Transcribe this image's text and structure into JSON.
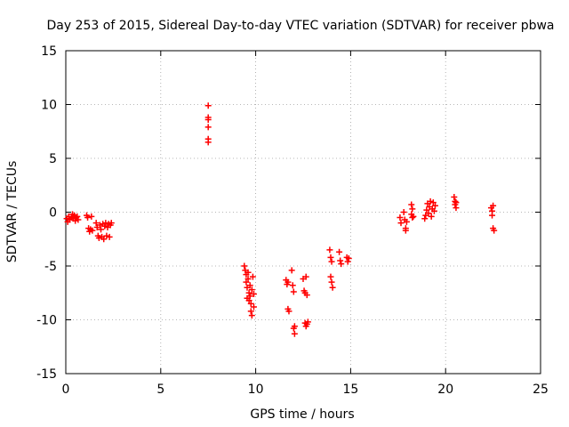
{
  "chart_data": {
    "type": "scatter",
    "title": "Day 253 of 2015, Sidereal Day-to-day VTEC variation (SDTVAR) for receiver pbwa",
    "xlabel": "GPS time / hours",
    "ylabel": "SDTVAR / TECUs",
    "xlim": [
      0,
      25
    ],
    "ylim": [
      -15,
      15
    ],
    "xticks": [
      0,
      5,
      10,
      15,
      20,
      25
    ],
    "yticks": [
      -15,
      -10,
      -5,
      0,
      5,
      10,
      15
    ],
    "grid": true,
    "marker": "+",
    "color": "#ff0000",
    "series": [
      {
        "name": "pbwa",
        "points": [
          [
            0.05,
            -0.6
          ],
          [
            0.1,
            -0.9
          ],
          [
            0.15,
            -0.4
          ],
          [
            0.2,
            -0.7
          ],
          [
            0.3,
            -0.5
          ],
          [
            0.35,
            -0.2
          ],
          [
            0.4,
            -0.6
          ],
          [
            0.45,
            -0.3
          ],
          [
            0.5,
            -0.8
          ],
          [
            0.55,
            -0.5
          ],
          [
            0.6,
            -0.4
          ],
          [
            0.65,
            -0.7
          ],
          [
            1.1,
            -0.3
          ],
          [
            1.15,
            -0.5
          ],
          [
            1.2,
            -1.5
          ],
          [
            1.25,
            -1.8
          ],
          [
            1.3,
            -1.6
          ],
          [
            1.35,
            -0.4
          ],
          [
            1.4,
            -1.7
          ],
          [
            1.6,
            -1.0
          ],
          [
            1.65,
            -1.4
          ],
          [
            1.7,
            -2.2
          ],
          [
            1.75,
            -2.4
          ],
          [
            1.8,
            -1.2
          ],
          [
            1.85,
            -1.6
          ],
          [
            1.9,
            -2.3
          ],
          [
            1.95,
            -1.1
          ],
          [
            2.0,
            -2.5
          ],
          [
            2.05,
            -1.3
          ],
          [
            2.1,
            -1.0
          ],
          [
            2.15,
            -2.2
          ],
          [
            2.2,
            -1.4
          ],
          [
            2.25,
            -1.1
          ],
          [
            2.3,
            -2.3
          ],
          [
            2.35,
            -1.2
          ],
          [
            2.4,
            -1.0
          ],
          [
            7.5,
            9.9
          ],
          [
            7.5,
            8.8
          ],
          [
            7.5,
            8.6
          ],
          [
            7.5,
            7.9
          ],
          [
            7.5,
            6.8
          ],
          [
            7.5,
            6.5
          ],
          [
            9.4,
            -5.0
          ],
          [
            9.45,
            -5.4
          ],
          [
            9.5,
            -5.8
          ],
          [
            9.5,
            -6.5
          ],
          [
            9.55,
            -7.0
          ],
          [
            9.55,
            -8.0
          ],
          [
            9.6,
            -5.6
          ],
          [
            9.6,
            -6.2
          ],
          [
            9.65,
            -7.5
          ],
          [
            9.65,
            -8.2
          ],
          [
            9.7,
            -6.8
          ],
          [
            9.7,
            -7.8
          ],
          [
            9.75,
            -8.5
          ],
          [
            9.75,
            -9.2
          ],
          [
            9.8,
            -9.6
          ],
          [
            9.8,
            -7.2
          ],
          [
            9.85,
            -6.0
          ],
          [
            9.9,
            -7.6
          ],
          [
            9.9,
            -8.8
          ],
          [
            11.6,
            -6.3
          ],
          [
            11.65,
            -6.7
          ],
          [
            11.7,
            -9.0
          ],
          [
            11.75,
            -9.2
          ],
          [
            11.7,
            -6.5
          ],
          [
            11.9,
            -5.4
          ],
          [
            11.95,
            -6.8
          ],
          [
            12.0,
            -7.4
          ],
          [
            12.0,
            -10.8
          ],
          [
            12.05,
            -11.3
          ],
          [
            12.05,
            -10.6
          ],
          [
            12.5,
            -6.2
          ],
          [
            12.55,
            -7.3
          ],
          [
            12.6,
            -7.5
          ],
          [
            12.65,
            -6.0
          ],
          [
            12.7,
            -7.7
          ],
          [
            12.6,
            -10.3
          ],
          [
            12.65,
            -10.6
          ],
          [
            12.7,
            -10.4
          ],
          [
            12.75,
            -10.2
          ],
          [
            13.9,
            -3.5
          ],
          [
            13.95,
            -4.2
          ],
          [
            14.0,
            -4.6
          ],
          [
            13.95,
            -6.0
          ],
          [
            14.0,
            -6.5
          ],
          [
            14.05,
            -7.0
          ],
          [
            14.4,
            -3.7
          ],
          [
            14.45,
            -4.5
          ],
          [
            14.5,
            -4.8
          ],
          [
            14.8,
            -4.2
          ],
          [
            14.85,
            -4.6
          ],
          [
            14.9,
            -4.3
          ],
          [
            17.6,
            -0.5
          ],
          [
            17.65,
            -1.0
          ],
          [
            17.8,
            0.0
          ],
          [
            17.85,
            -0.7
          ],
          [
            17.9,
            -1.5
          ],
          [
            17.9,
            -1.7
          ],
          [
            17.95,
            -0.9
          ],
          [
            18.2,
            0.7
          ],
          [
            18.25,
            0.3
          ],
          [
            18.2,
            -0.2
          ],
          [
            18.25,
            -0.5
          ],
          [
            18.3,
            -0.4
          ],
          [
            18.9,
            -0.6
          ],
          [
            18.95,
            -0.3
          ],
          [
            19.0,
            0.2
          ],
          [
            19.05,
            0.8
          ],
          [
            19.1,
            -0.1
          ],
          [
            19.15,
            0.5
          ],
          [
            19.2,
            1.0
          ],
          [
            19.25,
            -0.4
          ],
          [
            19.3,
            0.3
          ],
          [
            19.35,
            0.9
          ],
          [
            19.4,
            0.1
          ],
          [
            19.45,
            0.6
          ],
          [
            20.45,
            1.4
          ],
          [
            20.5,
            1.0
          ],
          [
            20.5,
            0.7
          ],
          [
            20.55,
            0.4
          ],
          [
            20.55,
            0.9
          ],
          [
            22.4,
            0.4
          ],
          [
            22.45,
            0.1
          ],
          [
            22.45,
            -0.3
          ],
          [
            22.5,
            0.6
          ],
          [
            22.5,
            -1.5
          ],
          [
            22.55,
            -1.7
          ]
        ]
      }
    ]
  }
}
